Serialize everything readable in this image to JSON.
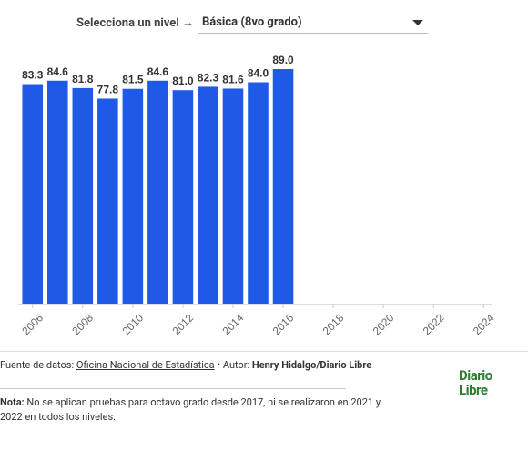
{
  "controls": {
    "label": "Selecciona un nivel →",
    "selected": "Básica (8vo grado)"
  },
  "chart_data": {
    "type": "bar",
    "x": [
      2006,
      2007,
      2008,
      2009,
      2010,
      2011,
      2012,
      2013,
      2014,
      2015,
      2016
    ],
    "values": [
      83.3,
      84.6,
      81.8,
      77.8,
      81.5,
      84.6,
      81,
      82.3,
      81.6,
      84,
      89
    ],
    "value_labels": [
      "83.3",
      "84.6",
      "81.8",
      "77.8",
      "81.5",
      "84.6",
      "81.0",
      "82.3",
      "81.6",
      "84.0",
      "89.0"
    ],
    "color": "#1f5ae6",
    "xlim": [
      2005.5,
      2024.5
    ],
    "xticks": [
      2006,
      2008,
      2010,
      2012,
      2014,
      2016,
      2018,
      2020,
      2022,
      2024
    ],
    "ylim": [
      0,
      89
    ]
  },
  "footer": {
    "source_label": "Fuente de datos:",
    "source_link": "Oficina Nacional de Estadística",
    "author_label": "• Autor:",
    "author": "Henry Hidalgo/Diario Libre",
    "note_label": "Nota:",
    "note": "No se aplican pruebas para octavo grado desde 2017, ni se realizaron en 2021 y 2022 en todos los niveles.",
    "logo": [
      "Diario",
      "Libre"
    ]
  }
}
